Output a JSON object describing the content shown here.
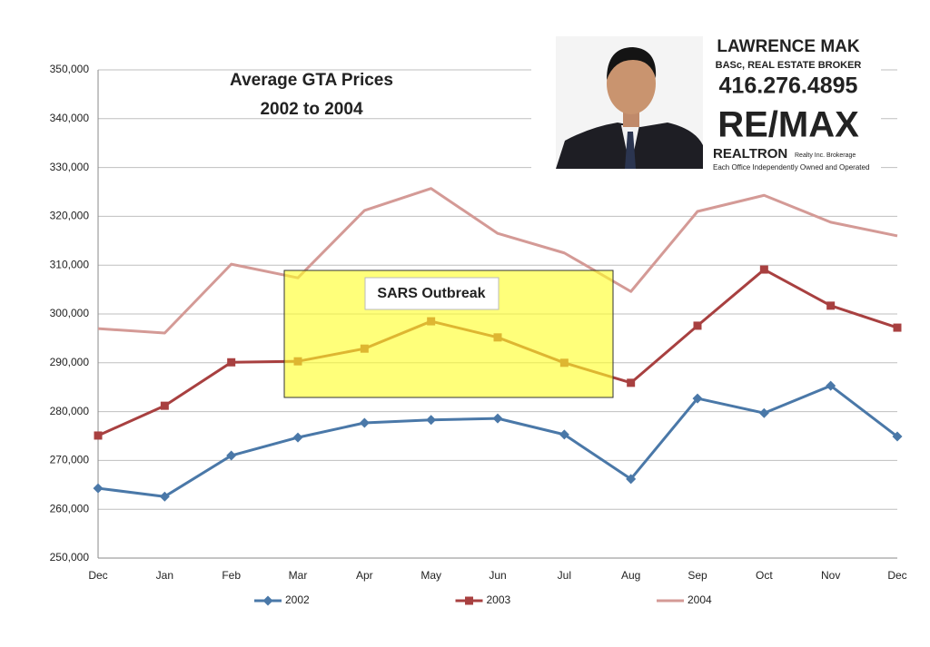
{
  "chart_data": {
    "type": "line",
    "title": "Average GTA Prices",
    "subtitle": "2002 to 2004",
    "annotation": "SARS Outbreak",
    "categories": [
      "Dec",
      "Jan",
      "Feb",
      "Mar",
      "Apr",
      "May",
      "Jun",
      "Jul",
      "Aug",
      "Sep",
      "Oct",
      "Nov",
      "Dec"
    ],
    "series": [
      {
        "name": "2002",
        "color": "#4a78a8",
        "marker": "diamond",
        "values": [
          264300,
          262600,
          271000,
          274700,
          277700,
          278300,
          278600,
          275300,
          266200,
          282700,
          279700,
          285300,
          274900
        ]
      },
      {
        "name": "2003",
        "color": "#a84040",
        "marker": "square",
        "values": [
          275100,
          281200,
          290100,
          290300,
          292900,
          298500,
          295200,
          290000,
          285900,
          297600,
          309100,
          301700,
          297200
        ]
      },
      {
        "name": "2004",
        "color": "#d49a96",
        "marker": "none",
        "values": [
          297000,
          296100,
          310200,
          307400,
          321200,
          325700,
          316500,
          312500,
          304600,
          321000,
          324300,
          318800,
          316000
        ]
      }
    ],
    "ylim": [
      250000,
      350000
    ],
    "yticks": [
      {
        "value": 250000,
        "label": "250,000"
      },
      {
        "value": 260000,
        "label": "260,000"
      },
      {
        "value": 270000,
        "label": "270,000"
      },
      {
        "value": 280000,
        "label": "280,000"
      },
      {
        "value": 290000,
        "label": "290,000"
      },
      {
        "value": 300000,
        "label": "300,000"
      },
      {
        "value": 310000,
        "label": "310,000"
      },
      {
        "value": 320000,
        "label": "320,000"
      },
      {
        "value": 330000,
        "label": "330,000"
      },
      {
        "value": 340000,
        "label": "340,000"
      },
      {
        "value": 350000,
        "label": "350,000"
      }
    ],
    "grid": true,
    "legend": "bottom"
  },
  "branding": {
    "name": "LAWRENCE MAK",
    "credentials": "BASc, REAL ESTATE BROKER",
    "phone": "416.276.4895",
    "brand": "RE/MAX",
    "office": "REALTRON",
    "office_sub": "Realty Inc. Brokerage",
    "disclaimer": "Each Office Independently Owned and Operated"
  }
}
